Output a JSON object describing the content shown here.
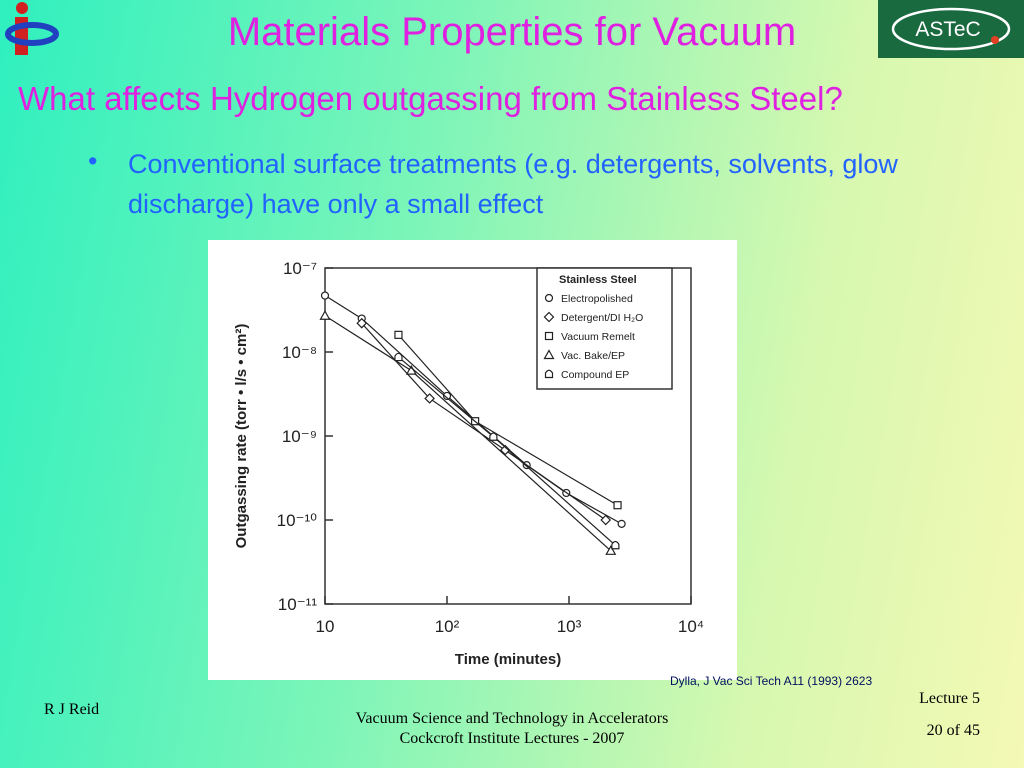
{
  "header": {
    "title": "Materials Properties for Vacuum",
    "subtitle": "What affects Hydrogen outgassing from Stainless Steel?",
    "logo_text": "ASTeC"
  },
  "body": {
    "bullets": [
      "Conventional surface treatments (e.g. detergents, solvents, glow discharge) have only a small effect"
    ],
    "citation": "Dylla, J Vac Sci Tech A11 (1993) 2623"
  },
  "footer": {
    "author": "R J Reid",
    "course": [
      "Vacuum Science and Technology in Accelerators",
      "Cockcroft Institute Lectures - 2007"
    ],
    "lecture": "Lecture 5",
    "page": "20 of 45"
  },
  "chart_data": {
    "type": "scatter",
    "x_label": "Time (minutes)",
    "y_label": "Outgassing rate (torr • l/s • cm²)",
    "legend_title": "Stainless Steel",
    "legend": "upper right",
    "log_x": true,
    "log_y": true,
    "xlim": [
      10,
      10000
    ],
    "ylim": [
      1e-11,
      1e-07
    ],
    "xticks": [
      10,
      {
        "value": 100,
        "label": "10²"
      },
      {
        "value": 1000,
        "label": "10³"
      },
      {
        "value": 10000,
        "label": "10⁴"
      }
    ],
    "yticks": [
      {
        "value": 1e-11,
        "label": "10⁻¹¹"
      },
      {
        "value": 1e-10,
        "label": "10⁻¹⁰"
      },
      {
        "value": 1e-09,
        "label": "10⁻⁹"
      },
      {
        "value": 1e-08,
        "label": "10⁻⁸"
      },
      {
        "value": 1e-07,
        "label": "10⁻⁷"
      }
    ],
    "series": [
      {
        "name": "Electropolished",
        "marker": "circle",
        "color": "#222222",
        "x": [
          10,
          20,
          100,
          450,
          950,
          2700
        ],
        "values": [
          4.7e-08,
          2.5e-08,
          3e-09,
          4.5e-10,
          2.1e-10,
          9e-11
        ]
      },
      {
        "name": "Detergent/DI H₂O",
        "marker": "diamond",
        "color": "#222222",
        "x": [
          20,
          72,
          300,
          2000
        ],
        "values": [
          2.2e-08,
          2.8e-09,
          6.8e-10,
          1e-10
        ]
      },
      {
        "name": "Vacuum Remelt",
        "marker": "square",
        "color": "#222222",
        "x": [
          40,
          170,
          2500
        ],
        "values": [
          1.6e-08,
          1.5e-09,
          1.5e-10
        ]
      },
      {
        "name": "Vac. Bake/EP",
        "marker": "triangle",
        "color": "#222222",
        "x": [
          10,
          51,
          2200
        ],
        "values": [
          2.7e-08,
          6e-09,
          4.3e-11
        ]
      },
      {
        "name": "Compound EP",
        "marker": "arch",
        "color": "#222222",
        "x": [
          40,
          240,
          2400
        ],
        "values": [
          8.7e-09,
          9.8e-10,
          5e-11
        ]
      }
    ]
  }
}
